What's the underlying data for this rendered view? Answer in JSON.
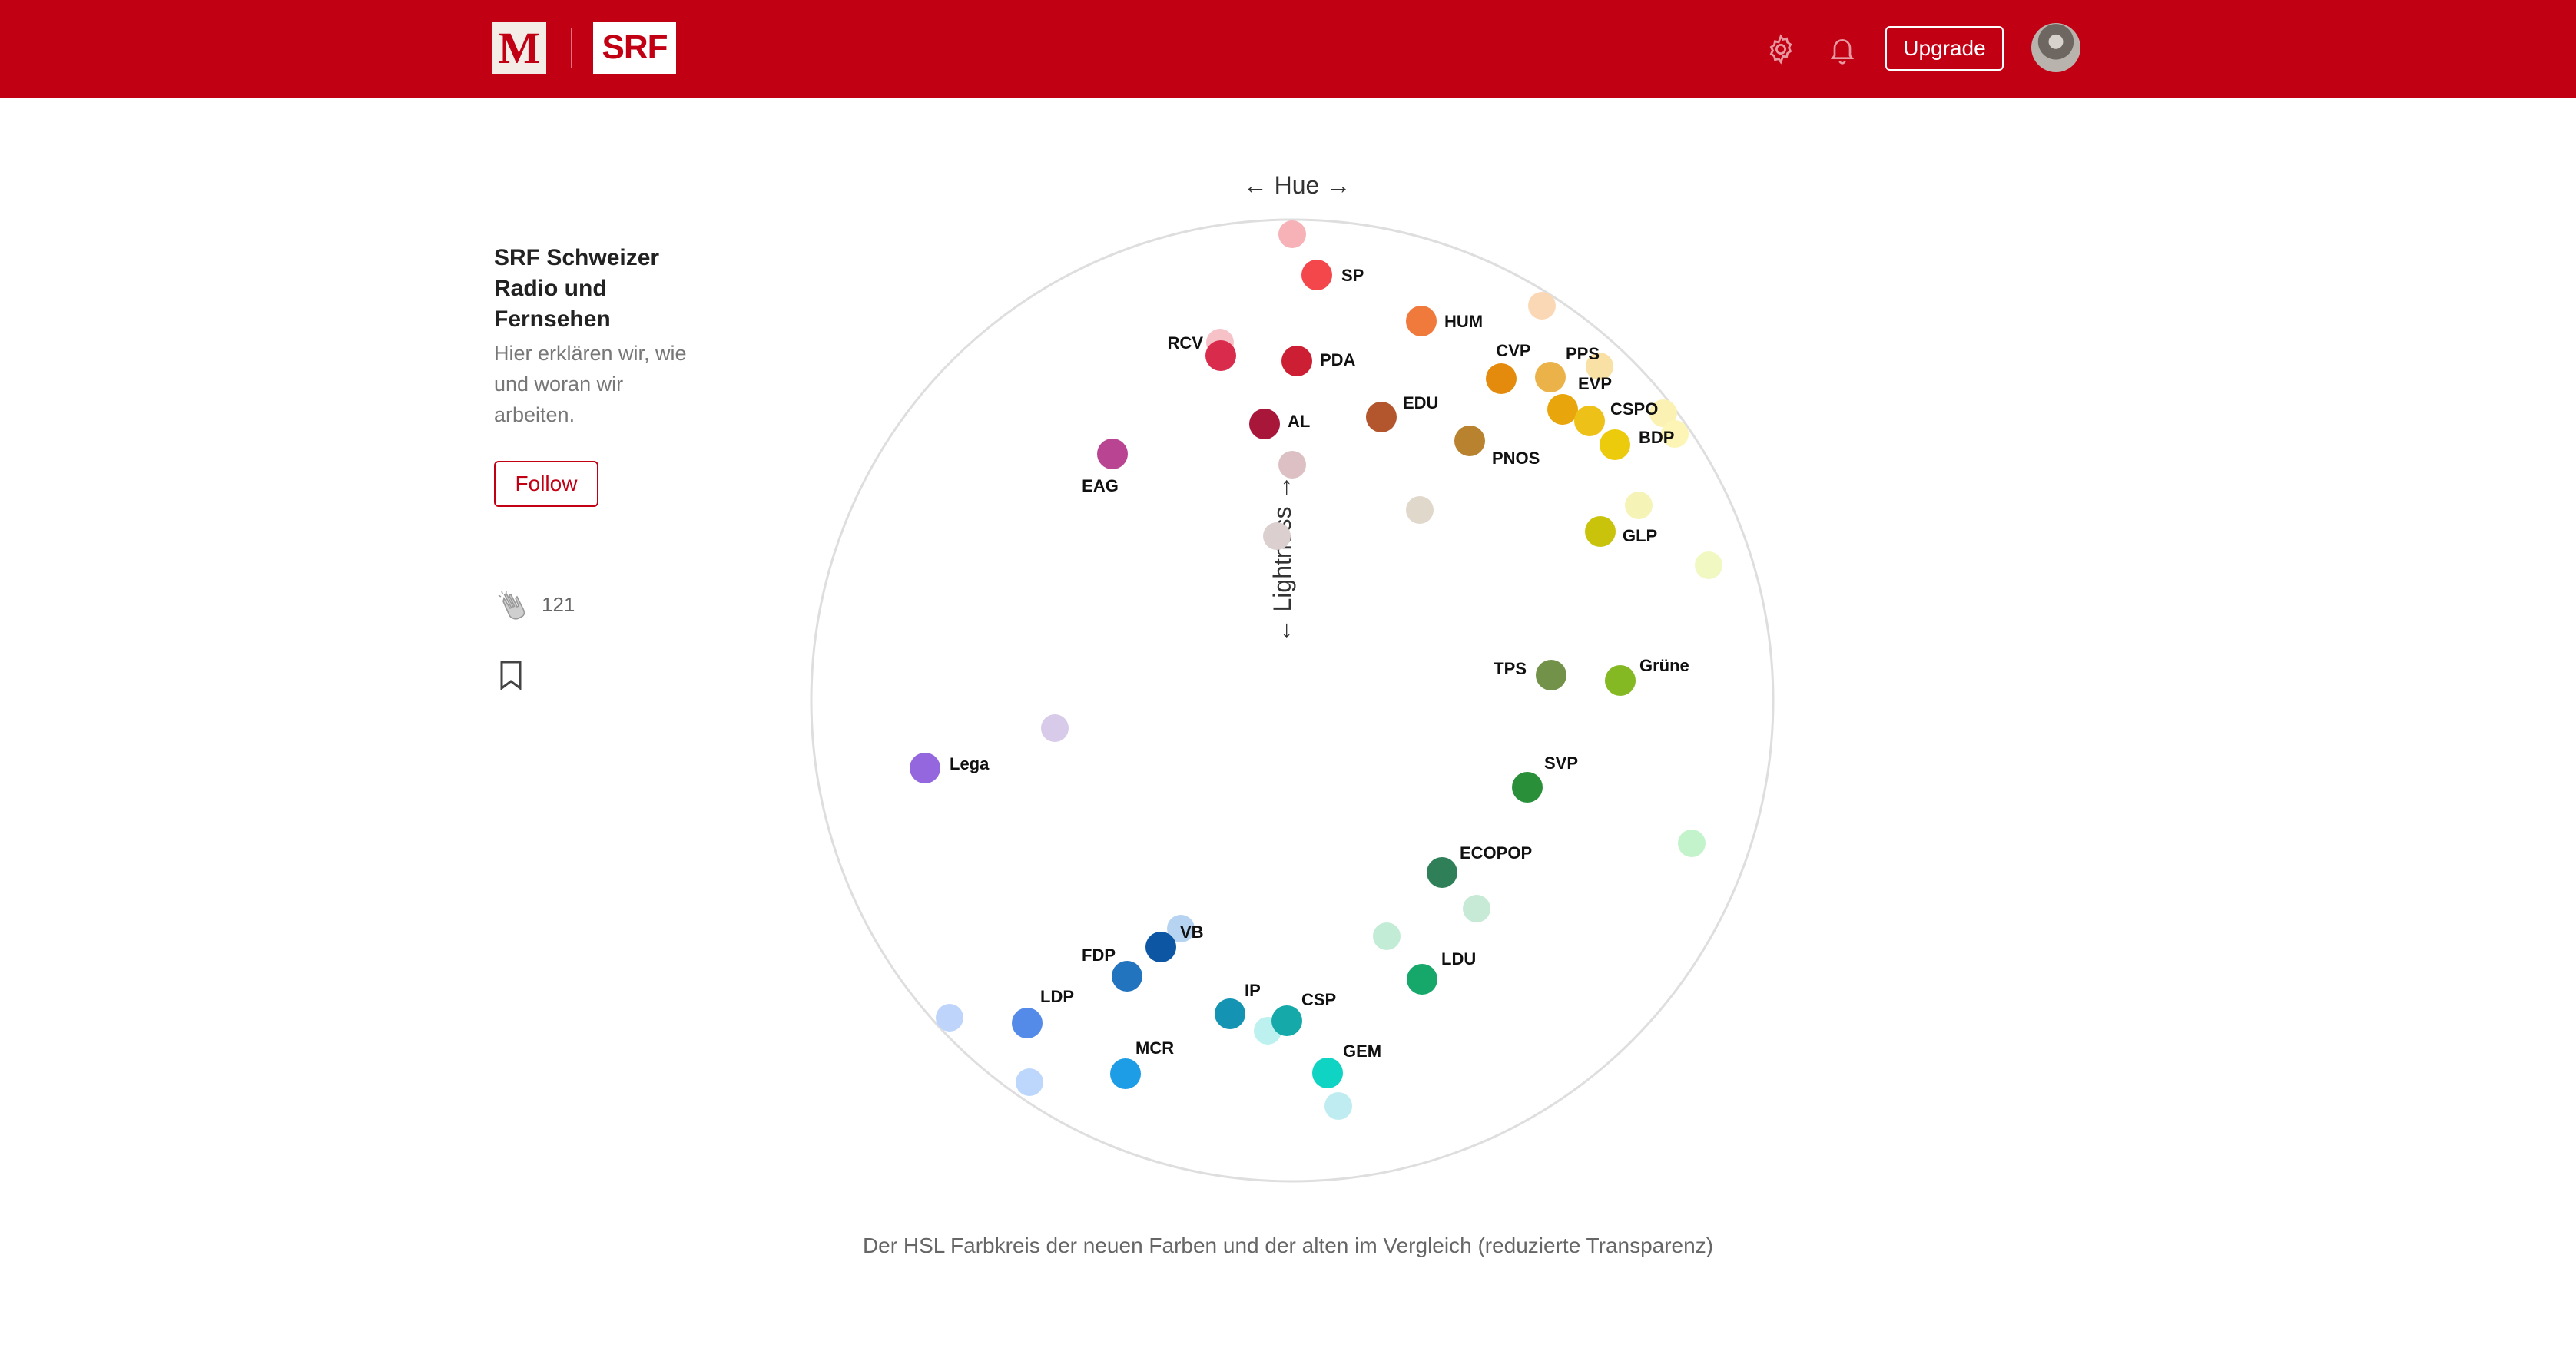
{
  "header": {
    "logo_m": "M",
    "logo_srf": "SRF",
    "settings_icon": "gear-icon",
    "notifications_icon": "bell-icon",
    "upgrade_label": "Upgrade",
    "brand_color": "#c20014"
  },
  "sidebar": {
    "publication_name": "SRF Schweizer Radio und Fernsehen",
    "publication_description": "Hier erklären wir, wie und woran wir arbeiten.",
    "follow_label": "Follow",
    "clap_count": "121",
    "clap_icon": "clap-icon",
    "bookmark_icon": "bookmark-icon"
  },
  "figure": {
    "hue_label": "← Hue →",
    "lightness_label": "← Lightness →",
    "caption": "Der HSL Farbkreis der neuen Farben und der alten im Vergleich (reduzierte Transparenz)",
    "parties": [
      {
        "name": "SP",
        "color": "#f4474c"
      },
      {
        "name": "HUM",
        "color": "#f07a3c"
      },
      {
        "name": "RCV",
        "color": "#d92b4b"
      },
      {
        "name": "PDA",
        "color": "#cc1f34"
      },
      {
        "name": "CVP",
        "color": "#e48a0c"
      },
      {
        "name": "PPS",
        "color": "#ecb24a"
      },
      {
        "name": "EVP",
        "color": "#e8a50c"
      },
      {
        "name": "EDU",
        "color": "#b3552d"
      },
      {
        "name": "CSPO",
        "color": "#eec118"
      },
      {
        "name": "BDP",
        "color": "#eccb0c"
      },
      {
        "name": "AL",
        "color": "#a8163a"
      },
      {
        "name": "PNOS",
        "color": "#b8822e"
      },
      {
        "name": "EAG",
        "color": "#b84492"
      },
      {
        "name": "GLP",
        "color": "#c9c30b"
      },
      {
        "name": "TPS",
        "color": "#72924a"
      },
      {
        "name": "Grüne",
        "color": "#84b924"
      },
      {
        "name": "Lega",
        "color": "#9467de"
      },
      {
        "name": "SVP",
        "color": "#2a8f39"
      },
      {
        "name": "ECOPOP",
        "color": "#2f7f58"
      },
      {
        "name": "VB",
        "color": "#0c56a3"
      },
      {
        "name": "FDP",
        "color": "#2374bf"
      },
      {
        "name": "LDU",
        "color": "#16a86a"
      },
      {
        "name": "LDP",
        "color": "#548ae8"
      },
      {
        "name": "IP",
        "color": "#1493b3"
      },
      {
        "name": "CSP",
        "color": "#16a9a9"
      },
      {
        "name": "MCR",
        "color": "#1d9de5"
      },
      {
        "name": "GEM",
        "color": "#0fd3c3"
      }
    ],
    "old_colors": [
      "#f7b2b8",
      "#fbd8b5",
      "#f7c1c8",
      "#f9e0a4",
      "#fbf1b3",
      "#fcf5b6",
      "#dcc0c3",
      "#e1d8cc",
      "#dccfd0",
      "#f6f3b6",
      "#f1f8c1",
      "#d8cbe9",
      "#c3f3cb",
      "#c6ead6",
      "#c3ecd6",
      "#b6d3f2",
      "#bed4fb",
      "#bcf1ef",
      "#bcd7fb",
      "#bfecf1"
    ]
  }
}
